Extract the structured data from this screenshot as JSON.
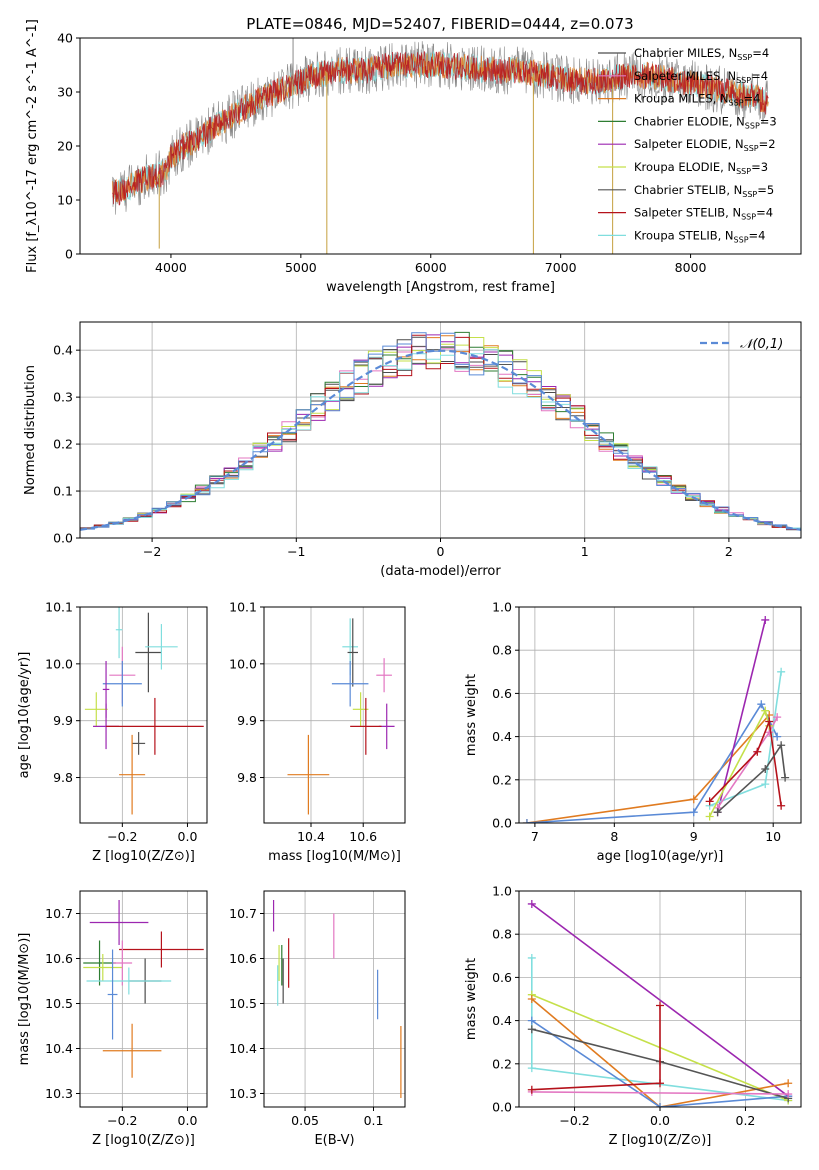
{
  "figure_title": "PLATE=0846, MJD=52407, FIBERID=0444, z=0.073",
  "colors": {
    "chabrier_miles": "#4c4c4c",
    "salpeter_miles": "#e377c2",
    "kroupa_miles": "#e07b20",
    "chabrier_elodie": "#2e7d32",
    "salpeter_elodie": "#9c27b0",
    "kroupa_elodie": "#c5e04a",
    "chabrier_stelib": "#555555",
    "salpeter_stelib": "#b5121b",
    "kroupa_stelib": "#80dede",
    "blue": "#5a8ad6"
  },
  "chart_data": [
    {
      "id": "spectrum",
      "type": "line",
      "xlabel": "wavelength [Angstrom, rest frame]",
      "ylabel": "Flux [f_λ10^-17 erg cm^-2 s^-1 A^-1]",
      "xlim": [
        3300,
        8850
      ],
      "ylim": [
        0,
        40
      ],
      "xticks": [
        4000,
        5000,
        6000,
        7000,
        8000
      ],
      "yticks": [
        0,
        10,
        20,
        30,
        40
      ],
      "legend_position": "right",
      "legend": [
        {
          "label": "Chabrier MILES, N_SSP=4",
          "color": "#4c4c4c"
        },
        {
          "label": "Salpeter MILES, N_SSP=4",
          "color": "#e377c2"
        },
        {
          "label": "Kroupa MILES, N_SSP=4",
          "color": "#e07b20"
        },
        {
          "label": "Chabrier ELODIE, N_SSP=3",
          "color": "#2e7d32"
        },
        {
          "label": "Salpeter ELODIE, N_SSP=2",
          "color": "#9c27b0"
        },
        {
          "label": "Kroupa ELODIE, N_SSP=3",
          "color": "#c5e04a"
        },
        {
          "label": "Chabrier STELIB, N_SSP=5",
          "color": "#555555"
        },
        {
          "label": "Salpeter STELIB, N_SSP=4",
          "color": "#b5121b"
        },
        {
          "label": "Kroupa STELIB, N_SSP=4",
          "color": "#80dede"
        }
      ],
      "continuum": [
        [
          3550,
          11
        ],
        [
          3650,
          12
        ],
        [
          3800,
          14
        ],
        [
          3950,
          15
        ],
        [
          4000,
          18
        ],
        [
          4100,
          20
        ],
        [
          4200,
          21
        ],
        [
          4300,
          23
        ],
        [
          4500,
          26
        ],
        [
          4700,
          29
        ],
        [
          4900,
          31
        ],
        [
          5100,
          33
        ],
        [
          5300,
          34
        ],
        [
          5500,
          34
        ],
        [
          5700,
          35
        ],
        [
          5900,
          35
        ],
        [
          6100,
          35
        ],
        [
          6300,
          34.5
        ],
        [
          6500,
          34
        ],
        [
          6700,
          34
        ],
        [
          6900,
          33
        ],
        [
          7100,
          32
        ],
        [
          7300,
          32
        ],
        [
          7500,
          33
        ],
        [
          7700,
          33
        ],
        [
          7900,
          32
        ],
        [
          8100,
          31
        ],
        [
          8300,
          30
        ],
        [
          8500,
          29
        ],
        [
          8600,
          28
        ]
      ],
      "spikes": [
        {
          "x": 3910,
          "y": 1
        },
        {
          "x": 5200,
          "y": 0
        },
        {
          "x": 6790,
          "y": 0
        },
        {
          "x": 7400,
          "y": 0
        },
        {
          "x": 4940,
          "y": 40
        }
      ]
    },
    {
      "id": "residuals",
      "type": "bar",
      "xlabel": "(data-model)/error",
      "ylabel": "Normed distribution",
      "xlim": [
        -2.5,
        2.5
      ],
      "ylim": [
        0,
        0.46
      ],
      "xticks": [
        -2,
        -1,
        0,
        1,
        2
      ],
      "yticks": [
        0.0,
        0.1,
        0.2,
        0.3,
        0.4
      ],
      "legend_position": "top-right",
      "legend_label": "𝒩(0,1)",
      "bin_width": 0.1,
      "histogram_model": "gaussian, mean 0, sigma 1"
    },
    {
      "id": "age_vs_Z",
      "type": "scatter",
      "xlabel": "Z [log10(Z/Z⊙)]",
      "ylabel": "age [log10(age/yr)]",
      "xlim": [
        -0.33,
        0.06
      ],
      "ylim": [
        9.72,
        10.1
      ],
      "xticks": [
        -0.2,
        0.0
      ],
      "yticks": [
        9.8,
        9.9,
        10.0,
        10.1
      ],
      "points": [
        {
          "x": -0.12,
          "y": 10.02,
          "xerr": 0.04,
          "yerr": 0.07,
          "color": "#4c4c4c"
        },
        {
          "x": -0.08,
          "y": 10.03,
          "xerr": 0.05,
          "yerr": 0.04,
          "color": "#80dede"
        },
        {
          "x": -0.21,
          "y": 10.06,
          "xerr": 0.01,
          "yerr": 0.05,
          "color": "#80dede"
        },
        {
          "x": -0.2,
          "y": 9.98,
          "xerr": 0.04,
          "yerr": 0.05,
          "color": "#e377c2"
        },
        {
          "x": -0.2,
          "y": 9.965,
          "xerr": 0.06,
          "yerr": 0.04,
          "color": "#5a8ad6"
        },
        {
          "x": -0.25,
          "y": 9.955,
          "xerr": 0.01,
          "yerr": 0.05,
          "color": "#9c27b0"
        },
        {
          "x": -0.28,
          "y": 9.92,
          "xerr": 0.035,
          "yerr": 0.03,
          "color": "#c5e04a"
        },
        {
          "x": -0.25,
          "y": 9.89,
          "xerr": 0.04,
          "yerr": 0.04,
          "color": "#9c27b0"
        },
        {
          "x": -0.1,
          "y": 9.89,
          "xerr": 0.15,
          "yerr": 0.05,
          "color": "#b5121b"
        },
        {
          "x": -0.15,
          "y": 9.86,
          "xerr": 0.02,
          "yerr": 0.02,
          "color": "#555555"
        },
        {
          "x": -0.17,
          "y": 9.805,
          "xerr": 0.04,
          "yerr": 0.07,
          "color": "#e07b20"
        }
      ]
    },
    {
      "id": "age_vs_mass",
      "type": "scatter",
      "xlabel": "mass [log10(M/M⊙)]",
      "ylabel": "",
      "xlim": [
        10.22,
        10.76
      ],
      "ylim": [
        9.72,
        10.1
      ],
      "xticks": [
        10.4,
        10.6
      ],
      "yticks": [
        9.8,
        9.9,
        10.0,
        10.1
      ],
      "points": [
        {
          "x": 10.55,
          "y": 10.03,
          "xerr": 0.03,
          "yerr": 0.05,
          "color": "#80dede"
        },
        {
          "x": 10.56,
          "y": 10.02,
          "xerr": 0.02,
          "yerr": 0.06,
          "color": "#4c4c4c"
        },
        {
          "x": 10.55,
          "y": 9.965,
          "xerr": 0.07,
          "yerr": 0.04,
          "color": "#5a8ad6"
        },
        {
          "x": 10.68,
          "y": 9.98,
          "xerr": 0.03,
          "yerr": 0.03,
          "color": "#e377c2"
        },
        {
          "x": 10.59,
          "y": 9.92,
          "xerr": 0.03,
          "yerr": 0.03,
          "color": "#c5e04a"
        },
        {
          "x": 10.69,
          "y": 9.89,
          "xerr": 0.03,
          "yerr": 0.04,
          "color": "#9c27b0"
        },
        {
          "x": 10.61,
          "y": 9.89,
          "xerr": 0.06,
          "yerr": 0.05,
          "color": "#b5121b"
        },
        {
          "x": 10.39,
          "y": 9.805,
          "xerr": 0.08,
          "yerr": 0.07,
          "color": "#e07b20"
        }
      ]
    },
    {
      "id": "massweight_vs_age",
      "type": "line",
      "xlabel": "age [log10(age/yr)]",
      "ylabel": "mass weight",
      "xlim": [
        6.8,
        10.35
      ],
      "ylim": [
        0,
        1
      ],
      "xticks": [
        7,
        8,
        9,
        10
      ],
      "yticks": [
        0.0,
        0.2,
        0.4,
        0.6,
        0.8,
        1.0
      ],
      "series": [
        {
          "color": "#e07b20",
          "points": [
            [
              6.9,
              0.0
            ],
            [
              9.0,
              0.11
            ],
            [
              9.95,
              0.5
            ]
          ]
        },
        {
          "color": "#5a8ad6",
          "points": [
            [
              6.9,
              0.0
            ],
            [
              9.0,
              0.05
            ],
            [
              9.85,
              0.55
            ],
            [
              10.05,
              0.4
            ]
          ]
        },
        {
          "color": "#9c27b0",
          "points": [
            [
              9.3,
              0.05
            ],
            [
              9.9,
              0.94
            ]
          ]
        },
        {
          "color": "#80dede",
          "points": [
            [
              9.2,
              0.08
            ],
            [
              9.9,
              0.18
            ],
            [
              10.1,
              0.7
            ]
          ]
        },
        {
          "color": "#e377c2",
          "points": [
            [
              9.3,
              0.07
            ],
            [
              9.95,
              0.42
            ],
            [
              10.05,
              0.49
            ]
          ]
        },
        {
          "color": "#c5e04a",
          "points": [
            [
              9.2,
              0.03
            ],
            [
              9.9,
              0.52
            ],
            [
              9.95,
              0.45
            ]
          ]
        },
        {
          "color": "#b5121b",
          "points": [
            [
              9.2,
              0.1
            ],
            [
              9.8,
              0.33
            ],
            [
              9.95,
              0.47
            ],
            [
              10.1,
              0.08
            ]
          ]
        },
        {
          "color": "#555555",
          "points": [
            [
              9.3,
              0.05
            ],
            [
              9.9,
              0.25
            ],
            [
              10.1,
              0.36
            ],
            [
              10.15,
              0.21
            ]
          ]
        }
      ]
    },
    {
      "id": "mass_vs_Z",
      "type": "scatter",
      "xlabel": "Z [log10(Z/Z⊙)]",
      "ylabel": "mass [log10(M/M⊙)]",
      "xlim": [
        -0.33,
        0.06
      ],
      "ylim": [
        10.27,
        10.75
      ],
      "xticks": [
        -0.2,
        0.0
      ],
      "yticks": [
        10.3,
        10.4,
        10.5,
        10.6,
        10.7
      ],
      "points": [
        {
          "x": -0.21,
          "y": 10.68,
          "xerr": 0.09,
          "yerr": 0.05,
          "color": "#9c27b0"
        },
        {
          "x": -0.08,
          "y": 10.62,
          "xerr": 0.13,
          "yerr": 0.04,
          "color": "#b5121b"
        },
        {
          "x": -0.27,
          "y": 10.59,
          "xerr": 0.05,
          "yerr": 0.05,
          "color": "#2e7d32"
        },
        {
          "x": -0.26,
          "y": 10.58,
          "xerr": 0.06,
          "yerr": 0.03,
          "color": "#c5e04a"
        },
        {
          "x": -0.2,
          "y": 10.59,
          "xerr": 0.03,
          "yerr": 0.05,
          "color": "#e377c2"
        },
        {
          "x": -0.13,
          "y": 10.55,
          "xerr": 0.05,
          "yerr": 0.05,
          "color": "#4c4c4c"
        },
        {
          "x": -0.18,
          "y": 10.55,
          "xerr": 0.13,
          "yerr": 0.03,
          "color": "#80dede"
        },
        {
          "x": -0.23,
          "y": 10.52,
          "xerr": 0.015,
          "yerr": 0.1,
          "color": "#5a8ad6"
        },
        {
          "x": -0.17,
          "y": 10.395,
          "xerr": 0.09,
          "yerr": 0.06,
          "color": "#e07b20"
        }
      ]
    },
    {
      "id": "mass_vs_ebv",
      "type": "scatter",
      "xlabel": "E(B-V)",
      "ylabel": "",
      "xlim": [
        0.02,
        0.123
      ],
      "ylim": [
        10.27,
        10.75
      ],
      "xticks": [
        0.05,
        0.1
      ],
      "yticks": [
        10.3,
        10.4,
        10.5,
        10.6,
        10.7
      ],
      "points": [
        {
          "x": 0.027,
          "y": 10.695,
          "xerr": 0.0,
          "yerr": 0.035,
          "color": "#9c27b0"
        },
        {
          "x": 0.071,
          "y": 10.65,
          "xerr": 0.0,
          "yerr": 0.05,
          "color": "#e377c2"
        },
        {
          "x": 0.038,
          "y": 10.59,
          "xerr": 0.0,
          "yerr": 0.055,
          "color": "#b5121b"
        },
        {
          "x": 0.033,
          "y": 10.585,
          "xerr": 0.0,
          "yerr": 0.045,
          "color": "#2e7d32"
        },
        {
          "x": 0.031,
          "y": 10.59,
          "xerr": 0.0,
          "yerr": 0.04,
          "color": "#c5e04a"
        },
        {
          "x": 0.034,
          "y": 10.55,
          "xerr": 0.0,
          "yerr": 0.05,
          "color": "#4c4c4c"
        },
        {
          "x": 0.03,
          "y": 10.54,
          "xerr": 0.0,
          "yerr": 0.045,
          "color": "#80dede"
        },
        {
          "x": 0.103,
          "y": 10.52,
          "xerr": 0.0,
          "yerr": 0.055,
          "color": "#5a8ad6"
        },
        {
          "x": 0.12,
          "y": 10.37,
          "xerr": 0.0,
          "yerr": 0.08,
          "color": "#e07b20"
        }
      ]
    },
    {
      "id": "massweight_vs_Z",
      "type": "line",
      "xlabel": "Z [log10(Z/Z⊙)]",
      "ylabel": "mass weight",
      "xlim": [
        -0.33,
        0.33
      ],
      "ylim": [
        0,
        1
      ],
      "xticks": [
        -0.2,
        0.0,
        0.2
      ],
      "yticks": [
        0.0,
        0.2,
        0.4,
        0.6,
        0.8,
        1.0
      ],
      "series": [
        {
          "color": "#9c27b0",
          "points": [
            [
              -0.3,
              0.94
            ],
            [
              0.3,
              0.05
            ]
          ]
        },
        {
          "color": "#80dede",
          "points": [
            [
              -0.3,
              0.69
            ],
            [
              -0.3,
              0.18
            ],
            [
              0.3,
              0.03
            ]
          ]
        },
        {
          "color": "#c5e04a",
          "points": [
            [
              -0.3,
              0.52
            ],
            [
              0.3,
              0.03
            ]
          ]
        },
        {
          "color": "#e07b20",
          "points": [
            [
              -0.3,
              0.5
            ],
            [
              0.0,
              0.0
            ],
            [
              0.3,
              0.11
            ]
          ]
        },
        {
          "color": "#5a8ad6",
          "points": [
            [
              -0.3,
              0.4
            ],
            [
              0.0,
              0.0
            ],
            [
              0.3,
              0.05
            ]
          ]
        },
        {
          "color": "#555555",
          "points": [
            [
              -0.3,
              0.36
            ],
            [
              0.0,
              0.21
            ],
            [
              0.3,
              0.04
            ]
          ]
        },
        {
          "color": "#e377c2",
          "points": [
            [
              -0.3,
              0.07
            ],
            [
              0.3,
              0.06
            ]
          ]
        },
        {
          "color": "#b5121b",
          "points": [
            [
              -0.3,
              0.08
            ],
            [
              0.0,
              0.11
            ],
            [
              0.0,
              0.47
            ]
          ]
        }
      ]
    }
  ]
}
